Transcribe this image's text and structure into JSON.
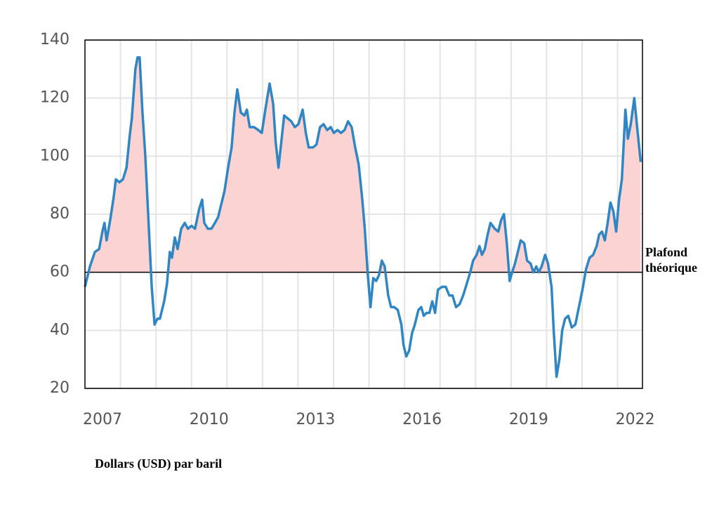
{
  "chart_data": {
    "type": "line",
    "color": "#2f86c3",
    "fill_color": "#fbd3d3",
    "axis_label": "Dollars (USD) par baril",
    "threshold": {
      "value": 60,
      "label": "Plafond théorique"
    },
    "xlim": [
      2007,
      2022.7
    ],
    "ylim": [
      20,
      140
    ],
    "xticks": [
      2007,
      2010,
      2013,
      2016,
      2019,
      2022
    ],
    "xgrid": [
      2008,
      2009,
      2010,
      2011,
      2012,
      2013,
      2014,
      2015,
      2016,
      2017,
      2018,
      2019,
      2020,
      2021,
      2022
    ],
    "yticks": [
      20,
      40,
      60,
      80,
      100,
      120,
      140
    ],
    "grid": true,
    "x": [
      2007.0,
      2007.14,
      2007.28,
      2007.4,
      2007.49,
      2007.55,
      2007.61,
      2007.71,
      2007.81,
      2007.87,
      2007.97,
      2008.07,
      2008.17,
      2008.26,
      2008.32,
      2008.42,
      2008.48,
      2008.54,
      2008.62,
      2008.7,
      2008.78,
      2008.88,
      2008.96,
      2009.04,
      2009.11,
      2009.23,
      2009.31,
      2009.39,
      2009.45,
      2009.53,
      2009.61,
      2009.71,
      2009.81,
      2009.9,
      2010.0,
      2010.1,
      2010.22,
      2010.3,
      2010.36,
      2010.46,
      2010.56,
      2010.66,
      2010.75,
      2010.85,
      2010.93,
      2011.03,
      2011.13,
      2011.21,
      2011.29,
      2011.39,
      2011.49,
      2011.56,
      2011.64,
      2011.76,
      2011.88,
      2011.98,
      2012.08,
      2012.2,
      2012.3,
      2012.37,
      2012.45,
      2012.53,
      2012.61,
      2012.71,
      2012.81,
      2012.91,
      2013.01,
      2013.13,
      2013.22,
      2013.3,
      2013.42,
      2013.52,
      2013.62,
      2013.72,
      2013.82,
      2013.92,
      2014.01,
      2014.11,
      2014.21,
      2014.31,
      2014.41,
      2014.51,
      2014.61,
      2014.71,
      2014.81,
      2014.88,
      2014.96,
      2015.04,
      2015.12,
      2015.2,
      2015.28,
      2015.36,
      2015.44,
      2015.54,
      2015.62,
      2015.71,
      2015.81,
      2015.91,
      2015.97,
      2016.05,
      2016.13,
      2016.21,
      2016.29,
      2016.39,
      2016.47,
      2016.54,
      2016.62,
      2016.7,
      2016.78,
      2016.86,
      2016.94,
      2017.06,
      2017.16,
      2017.26,
      2017.35,
      2017.45,
      2017.55,
      2017.65,
      2017.75,
      2017.85,
      2017.93,
      2018.03,
      2018.11,
      2018.18,
      2018.26,
      2018.34,
      2018.42,
      2018.54,
      2018.64,
      2018.72,
      2018.8,
      2018.88,
      2018.96,
      2019.03,
      2019.11,
      2019.19,
      2019.27,
      2019.37,
      2019.45,
      2019.55,
      2019.63,
      2019.71,
      2019.78,
      2019.86,
      2019.96,
      2020.04,
      2020.14,
      2020.2,
      2020.28,
      2020.36,
      2020.44,
      2020.52,
      2020.61,
      2020.71,
      2020.81,
      2020.91,
      2021.01,
      2021.11,
      2021.21,
      2021.31,
      2021.41,
      2021.48,
      2021.56,
      2021.64,
      2021.72,
      2021.8,
      2021.88,
      2021.96,
      2022.04,
      2022.12,
      2022.22,
      2022.29,
      2022.37,
      2022.47,
      2022.55,
      2022.65
    ],
    "values": [
      55,
      62,
      67,
      68,
      74,
      77,
      71,
      78,
      86,
      92,
      91,
      92,
      96,
      107,
      113,
      130,
      134,
      134,
      115,
      100,
      80,
      55,
      42,
      44,
      44,
      50,
      56,
      67,
      65,
      72,
      68,
      75,
      77,
      75,
      76,
      75,
      82,
      85,
      77,
      75,
      75,
      77,
      79,
      84,
      88,
      96,
      103,
      115,
      123,
      115,
      114,
      116,
      110,
      110,
      109,
      108,
      116,
      125,
      118,
      105,
      96,
      105,
      114,
      113,
      112,
      110,
      111,
      116,
      108,
      103,
      103,
      104,
      110,
      111,
      109,
      110,
      108,
      109,
      108,
      109,
      112,
      110,
      103,
      97,
      85,
      75,
      60,
      48,
      58,
      57,
      59,
      64,
      62,
      52,
      48,
      48,
      47,
      42,
      35,
      31,
      33,
      39,
      42,
      47,
      48,
      45,
      46,
      46,
      50,
      46,
      54,
      55,
      55,
      52,
      52,
      48,
      49,
      52,
      56,
      60,
      64,
      66,
      69,
      66,
      68,
      73,
      77,
      75,
      74,
      78,
      80,
      70,
      57,
      60,
      63,
      67,
      71,
      70,
      64,
      63,
      60,
      62,
      60,
      62,
      66,
      63,
      55,
      40,
      24,
      30,
      40,
      44,
      45,
      41,
      42,
      48,
      54,
      61,
      65,
      66,
      69,
      73,
      74,
      71,
      77,
      84,
      81,
      74,
      85,
      92,
      116,
      106,
      111,
      120,
      110,
      98
    ]
  }
}
